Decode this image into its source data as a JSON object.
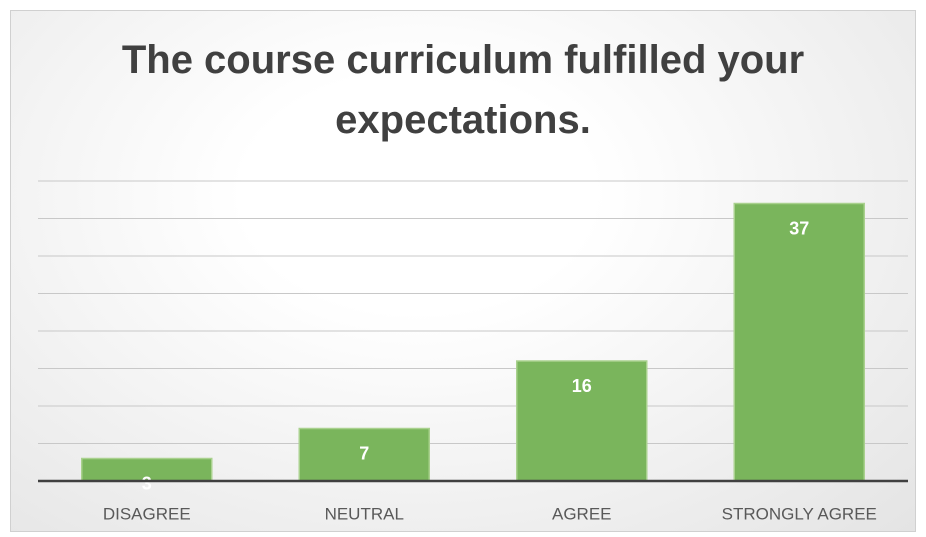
{
  "chart_data": {
    "type": "bar",
    "title": "The course curriculum fulfilled your expectations.",
    "categories": [
      "DISAGREE",
      "NEUTRAL",
      "AGREE",
      "STRONGLY AGREE"
    ],
    "values": [
      3,
      7,
      16,
      37
    ],
    "color": "#7ab55c",
    "ylim": [
      0,
      40
    ],
    "yticks": [
      0,
      5,
      10,
      15,
      20,
      25,
      30,
      35,
      40
    ],
    "grid": true
  }
}
